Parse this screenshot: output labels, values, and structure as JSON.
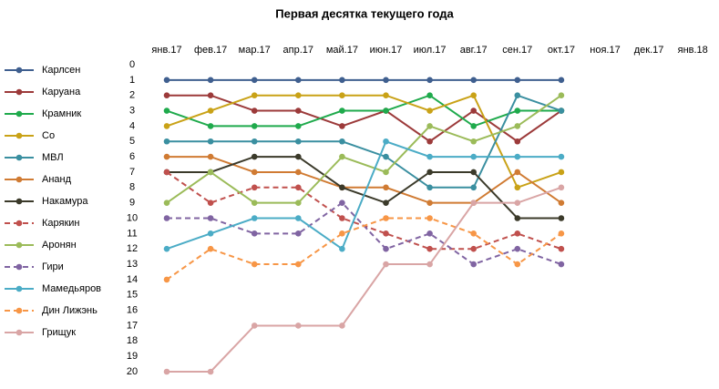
{
  "chart_data": {
    "type": "line",
    "title": "Первая десятка текущего года",
    "categories": [
      "янв.17",
      "фев.17",
      "мар.17",
      "апр.17",
      "май.17",
      "июн.17",
      "июл.17",
      "авг.17",
      "сен.17",
      "окт.17",
      "ноя.17",
      "дек.17",
      "янв.18"
    ],
    "ylim": [
      0,
      20
    ],
    "y_inverted": true,
    "yticks": [
      0,
      1,
      2,
      3,
      4,
      5,
      6,
      7,
      8,
      9,
      10,
      11,
      12,
      13,
      14,
      15,
      16,
      17,
      18,
      19,
      20
    ],
    "legend": "left",
    "series": [
      {
        "name": "Карлсен",
        "color": "#3f5f8f",
        "dashed": false,
        "values": [
          1,
          1,
          1,
          1,
          1,
          1,
          1,
          1,
          1,
          1,
          null,
          null,
          null
        ]
      },
      {
        "name": "Каруана",
        "color": "#9c3a3a",
        "dashed": false,
        "values": [
          2,
          2,
          3,
          3,
          4,
          3,
          5,
          3,
          5,
          3,
          null,
          null,
          null
        ]
      },
      {
        "name": "Крамник",
        "color": "#1faa4c",
        "dashed": false,
        "values": [
          3,
          4,
          4,
          4,
          3,
          3,
          2,
          4,
          3,
          3,
          null,
          null,
          null
        ]
      },
      {
        "name": "Со",
        "color": "#c9a217",
        "dashed": false,
        "values": [
          4,
          3,
          2,
          2,
          2,
          2,
          3,
          2,
          8,
          7,
          null,
          null,
          null
        ]
      },
      {
        "name": "МВЛ",
        "color": "#3a8fa0",
        "dashed": false,
        "values": [
          5,
          5,
          5,
          5,
          5,
          6,
          8,
          8,
          2,
          3,
          null,
          null,
          null
        ]
      },
      {
        "name": "Ананд",
        "color": "#d07b33",
        "dashed": false,
        "values": [
          6,
          6,
          7,
          7,
          8,
          8,
          9,
          9,
          7,
          9,
          null,
          null,
          null
        ]
      },
      {
        "name": "Накамура",
        "color": "#3b3a2a",
        "dashed": false,
        "values": [
          7,
          7,
          6,
          6,
          8,
          9,
          7,
          7,
          10,
          10,
          null,
          null,
          null
        ]
      },
      {
        "name": "Карякин",
        "color": "#c0504d",
        "dashed": true,
        "values": [
          7,
          9,
          8,
          8,
          10,
          11,
          12,
          12,
          11,
          12,
          null,
          null,
          null
        ]
      },
      {
        "name": "Аронян",
        "color": "#9bbb59",
        "dashed": false,
        "values": [
          9,
          7,
          9,
          9,
          6,
          7,
          4,
          5,
          4,
          2,
          null,
          null,
          null
        ]
      },
      {
        "name": "Гири",
        "color": "#8064a2",
        "dashed": true,
        "values": [
          10,
          10,
          11,
          11,
          9,
          12,
          11,
          13,
          12,
          13,
          null,
          null,
          null
        ]
      },
      {
        "name": "Мамедьяров",
        "color": "#4bacc6",
        "dashed": false,
        "values": [
          12,
          11,
          10,
          10,
          12,
          5,
          6,
          6,
          6,
          6,
          null,
          null,
          null
        ]
      },
      {
        "name": "Дин Лижэнь",
        "color": "#f79646",
        "dashed": true,
        "values": [
          14,
          12,
          13,
          13,
          11,
          10,
          10,
          11,
          13,
          11,
          null,
          null,
          null
        ]
      },
      {
        "name": "Грищук",
        "color": "#d9a5a5",
        "dashed": false,
        "values": [
          20,
          20,
          17,
          17,
          17,
          13,
          13,
          9,
          9,
          8,
          null,
          null,
          null
        ]
      }
    ]
  }
}
